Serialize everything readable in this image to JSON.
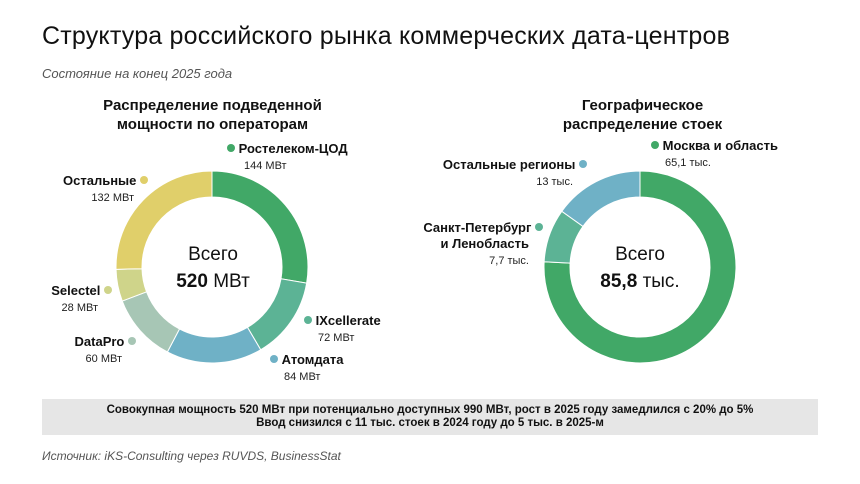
{
  "header": {
    "title": "Структура российского рынка коммерческих дата-центров",
    "subtitle": "Состояние на конец 2025 года"
  },
  "chart_data": [
    {
      "type": "pie",
      "title": "Распределение подведенной мощности по операторам",
      "center": {
        "line1": "Всего",
        "value": "520",
        "unit": "МВт"
      },
      "slices": [
        {
          "label": "Ростелеком-ЦОД",
          "value": 144,
          "value_text": "144 МВт",
          "color": "#41a867"
        },
        {
          "label": "IXcellerate",
          "value": 72,
          "value_text": "72 МВт",
          "color": "#5cb395"
        },
        {
          "label": "Атомдата",
          "value": 84,
          "value_text": "84 МВт",
          "color": "#6fb1c6"
        },
        {
          "label": "DataPro",
          "value": 60,
          "value_text": "60 МВт",
          "color": "#a7c6b5"
        },
        {
          "label": "Selectel",
          "value": 28,
          "value_text": "28 МВт",
          "color": "#cfd48a"
        },
        {
          "label": "Остальные",
          "value": 132,
          "value_text": "132 МВт",
          "color": "#e0cf6a"
        }
      ]
    },
    {
      "type": "pie",
      "title": "Географическое распределение стоек",
      "center": {
        "line1": "Всего",
        "value": "85,8",
        "unit": "тыс."
      },
      "slices": [
        {
          "label": "Москва и область",
          "value": 65.1,
          "value_text": "65,1 тыс.",
          "color": "#41a867"
        },
        {
          "label": "Санкт-Петербург и Ленобласть",
          "value": 7.7,
          "value_text": "7,7 тыс.",
          "color": "#5cb395"
        },
        {
          "label": "Остальные регионы",
          "value": 13,
          "value_text": "13 тыс.",
          "color": "#6fb1c6"
        }
      ]
    }
  ],
  "note": {
    "line1": "Совокупная мощность 520 МВт при потенциально доступных 990 МВт, рост в 2025 году замедлился с 20% до 5%",
    "line2": "Ввод снизился с 11 тыс. стоек в 2024 году до 5 тыс. в 2025-м"
  },
  "source": "Источник: iKS-Consulting через RUVDS, BusinessStat"
}
